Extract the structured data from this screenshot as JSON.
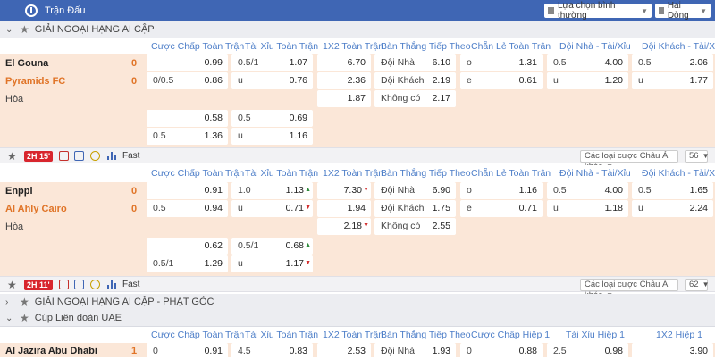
{
  "topbar": {
    "title": "Trận Đấu",
    "odds_type": "Lựa chọn bình thường",
    "odds_format": "Hai Dòng"
  },
  "leagues": {
    "egypt": "GIẢI NGOẠI HẠNG AI CẬP",
    "egypt_corners": "GIẢI NGOẠI HẠNG AI CẬP - PHẠT GÓC",
    "uae": "Cúp Liên đoàn UAE"
  },
  "columns": {
    "handicap": "Cược Chấp Toàn Trận",
    "overunder": "Tài Xỉu Toàn Trận",
    "onextwo": "1X2 Toàn Trận",
    "nextgoal": "Bàn Thắng Tiếp Theo",
    "oddeven": "Chẵn Lẻ Toàn Trận",
    "home_ou": "Đội Nhà - Tài/Xỉu",
    "away_ou": "Đội Khách - Tài/Xỉu",
    "handicap_h1": "Cược Chấp Hiệp 1",
    "overunder_h1": "Tài Xỉu Hiệp 1",
    "onextwo_h1": "1X2 Hiệp 1"
  },
  "labels": {
    "draw": "Hòa",
    "home": "Đội Nhà",
    "away": "Đội Khách",
    "none": "Không có",
    "fast": "Fast",
    "other_bets": "Các loại cược Châu Á khác",
    "u": "u",
    "o": "o",
    "e": "e"
  },
  "match1": {
    "home": "El Gouna",
    "away": "Pyramids FC",
    "home_score": "0",
    "away_score": "0",
    "live": "2H 15'",
    "more": "56",
    "hdp": [
      {
        "line": "",
        "odd": "0.99"
      },
      {
        "line": "0/0.5",
        "odd": "0.86"
      }
    ],
    "ou": [
      {
        "line": "0.5/1",
        "odd": "1.07"
      },
      {
        "line": "u",
        "odd": "0.76"
      }
    ],
    "x12": [
      "6.70",
      "2.36",
      "1.87"
    ],
    "ng": [
      "6.10",
      "2.19",
      "2.17"
    ],
    "oe": [
      {
        "line": "o",
        "odd": "1.31"
      },
      {
        "line": "e",
        "odd": "0.61"
      }
    ],
    "hou": [
      {
        "line": "0.5",
        "odd": "4.00"
      },
      {
        "line": "u",
        "odd": "1.20"
      }
    ],
    "aou": [
      {
        "line": "0.5",
        "odd": "2.06"
      },
      {
        "line": "u",
        "odd": "1.77"
      }
    ],
    "hdp2": [
      {
        "line": "",
        "odd": "0.58"
      },
      {
        "line": "0.5",
        "odd": "1.36"
      }
    ],
    "ou2": [
      {
        "line": "0.5",
        "odd": "0.69"
      },
      {
        "line": "u",
        "odd": "1.16"
      }
    ]
  },
  "match2": {
    "home": "Enppi",
    "away": "Al Ahly Cairo",
    "home_score": "0",
    "away_score": "0",
    "live": "2H 11'",
    "more": "62",
    "hdp": [
      {
        "line": "",
        "odd": "0.91"
      },
      {
        "line": "0.5",
        "odd": "0.94"
      }
    ],
    "ou": [
      {
        "line": "1.0",
        "odd": "1.13"
      },
      {
        "line": "u",
        "odd": "0.71"
      }
    ],
    "x12": [
      "7.30",
      "1.94",
      "2.18"
    ],
    "ng": [
      "6.90",
      "1.75",
      "2.55"
    ],
    "oe": [
      {
        "line": "o",
        "odd": "1.16"
      },
      {
        "line": "e",
        "odd": "0.71"
      }
    ],
    "hou": [
      {
        "line": "0.5",
        "odd": "4.00"
      },
      {
        "line": "u",
        "odd": "1.18"
      }
    ],
    "aou": [
      {
        "line": "0.5",
        "odd": "1.65"
      },
      {
        "line": "u",
        "odd": "2.24"
      }
    ],
    "hdp2": [
      {
        "line": "",
        "odd": "0.62"
      },
      {
        "line": "0.5/1",
        "odd": "1.29"
      }
    ],
    "ou2": [
      {
        "line": "0.5/1",
        "odd": "0.68"
      },
      {
        "line": "u",
        "odd": "1.17"
      }
    ]
  },
  "match3": {
    "home": "Al Jazira Abu Dhabi",
    "home_score": "1",
    "hdp": {
      "line": "0",
      "odd": "0.91"
    },
    "ou": {
      "line": "4.5",
      "odd": "0.83"
    },
    "x12": "2.53",
    "ng": "1.93",
    "hdp_h1": {
      "line": "0",
      "odd": "0.88"
    },
    "ou_h1": {
      "line": "2.5",
      "odd": "0.98"
    },
    "x12_h1": "3.90"
  },
  "colors": {
    "topbar": "#3f66b4",
    "row_bg": "#fbe7d8",
    "away_team": "#e07427",
    "live_badge": "#d8262e",
    "col_header": "#4d7ec8"
  }
}
